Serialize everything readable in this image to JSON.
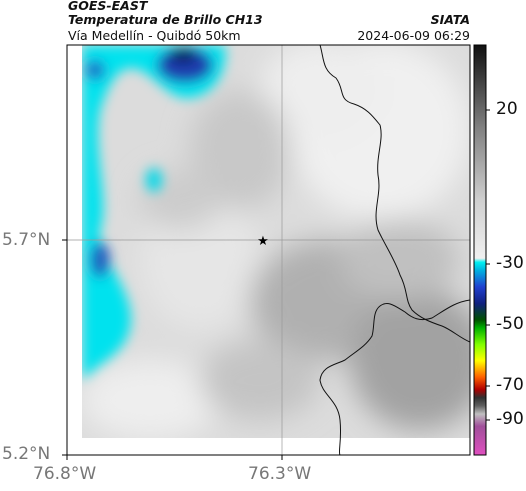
{
  "header": {
    "title": "GOES-EAST",
    "subtitle": "Temperatura de Brillo CH13",
    "source": "SIATA",
    "location": "Vía Medellín - Quibdó 50km",
    "datetime": "2024-06-09 06:29"
  },
  "map": {
    "lat_ticks": [
      "5.7°N",
      "5.2°N"
    ],
    "lon_ticks": [
      "76.8°W",
      "76.3°W"
    ],
    "marker": "star"
  },
  "colorbar": {
    "ticks": [
      "20",
      "-30",
      "-50",
      "-70",
      "-90"
    ],
    "colors": {
      "warm": "#e6e6e6",
      "gray_dark": "#2a2a2a",
      "cyan": "#00e5f0",
      "blue": "#1a2fb0",
      "green": "#00c800",
      "yellow": "#ffff00",
      "red": "#e00000",
      "magenta": "#d040d0"
    }
  }
}
